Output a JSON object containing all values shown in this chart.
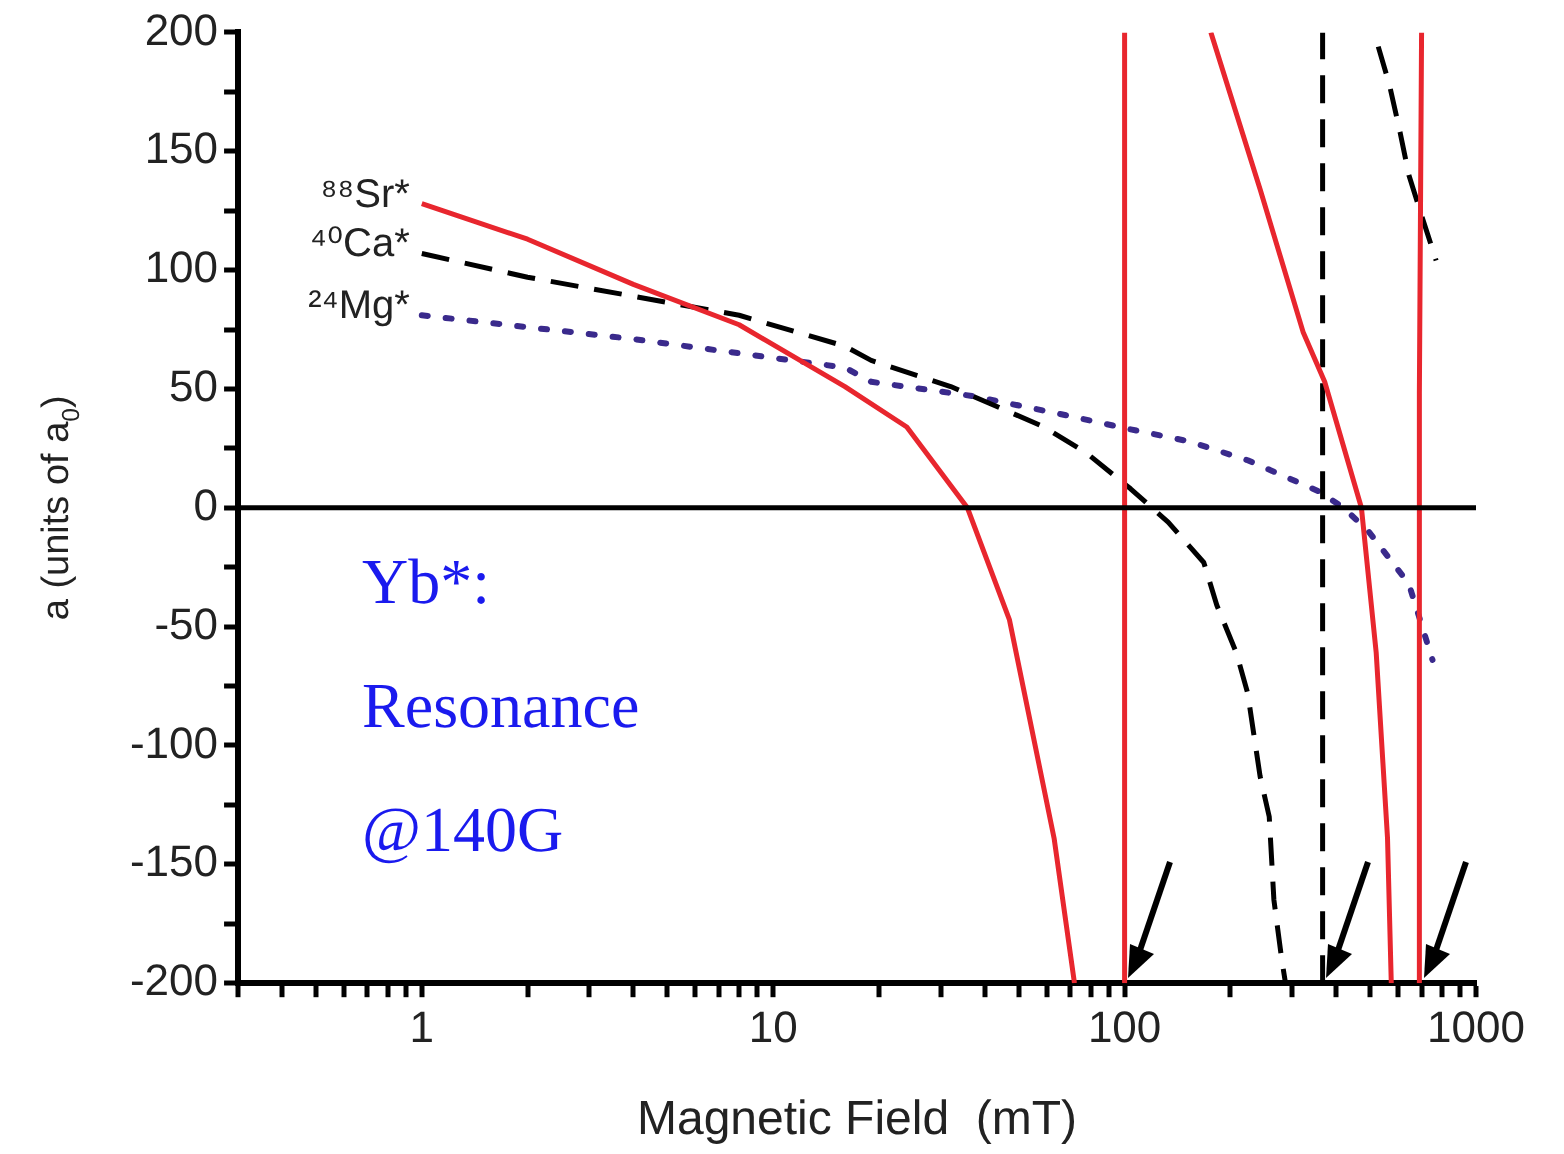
{
  "chart_data": {
    "type": "line",
    "xlabel": "Magnetic Field  (mT)",
    "ylabel": "a (units of a$_{0}$)",
    "log": "x",
    "xlim": [
      0.3,
      1000
    ],
    "xticks": [
      {
        "value": 0.3,
        "label": null
      },
      {
        "value": 0.4,
        "label": null
      },
      {
        "value": 0.5,
        "label": null
      },
      {
        "value": 0.6,
        "label": null
      },
      {
        "value": 0.7,
        "label": null
      },
      {
        "value": 0.8,
        "label": null
      },
      {
        "value": 0.9,
        "label": null
      },
      1,
      {
        "value": 2,
        "label": null
      },
      {
        "value": 3,
        "label": null
      },
      {
        "value": 4,
        "label": null
      },
      {
        "value": 5,
        "label": null
      },
      {
        "value": 6,
        "label": null
      },
      {
        "value": 7,
        "label": null
      },
      {
        "value": 8,
        "label": null
      },
      {
        "value": 9,
        "label": null
      },
      10,
      {
        "value": 20,
        "label": null
      },
      {
        "value": 30,
        "label": null
      },
      {
        "value": 40,
        "label": null
      },
      {
        "value": 50,
        "label": null
      },
      {
        "value": 60,
        "label": null
      },
      {
        "value": 70,
        "label": null
      },
      {
        "value": 80,
        "label": null
      },
      {
        "value": 90,
        "label": null
      },
      100,
      {
        "value": 200,
        "label": null
      },
      {
        "value": 300,
        "label": null
      },
      {
        "value": 400,
        "label": null
      },
      {
        "value": 500,
        "label": null
      },
      {
        "value": 600,
        "label": null
      },
      {
        "value": 700,
        "label": null
      },
      {
        "value": 800,
        "label": null
      },
      {
        "value": 900,
        "label": null
      },
      1000
    ],
    "ylim": [
      -200,
      200
    ],
    "yticks": [
      -200,
      {
        "value": -175,
        "label": null
      },
      -150,
      {
        "value": -125,
        "label": null
      },
      -100,
      {
        "value": -75,
        "label": null
      },
      -50,
      {
        "value": -25,
        "label": null
      },
      0,
      {
        "value": 25,
        "label": null
      },
      50,
      {
        "value": 75,
        "label": null
      },
      100,
      {
        "value": 125,
        "label": null
      },
      150,
      {
        "value": 175,
        "label": null
      },
      200
    ],
    "grid": false,
    "legend": false,
    "marker": "none",
    "ref_lines": [
      {
        "axis": "y",
        "value": 0,
        "color": "#000000"
      }
    ],
    "annotations": [
      "Yb*:",
      "Resonance",
      "@140G"
    ],
    "series": [
      {
        "name": "⁸⁸Sr*",
        "color": "#e8262e",
        "line_style": "solid",
        "x": [
          1,
          2,
          4,
          8,
          16,
          24,
          35.7,
          47,
          63,
          72,
          85,
          100,
          100,
          130,
          176,
          243,
          322,
          371,
          472,
          520,
          560,
          574,
          630,
          690,
          690,
          700
        ],
        "values": [
          128,
          113,
          94,
          77,
          51,
          34,
          0,
          -47,
          -139,
          -200,
          null,
          -200,
          200,
          null,
          200,
          134,
          74,
          53,
          0,
          -61,
          -139,
          -200,
          null,
          -200,
          48,
          200
        ]
      },
      {
        "name": "⁴⁰Ca*",
        "color": "#000000",
        "line_style": "dashed",
        "x": [
          1,
          2,
          4,
          8,
          16,
          19,
          32,
          59,
          78,
          104,
          133,
          168,
          183,
          208,
          224,
          243,
          258,
          266,
          280,
          287,
          320,
          366,
          366,
          440,
          527,
          567,
          608,
          644,
          700,
          770
        ],
        "values": [
          107,
          97,
          89,
          81,
          68,
          62,
          51,
          34,
          23,
          8,
          -6,
          -23,
          -41,
          -61,
          -78,
          -113,
          -130,
          -165,
          -190,
          -200,
          null,
          -200,
          200,
          null,
          194,
          178,
          158,
          140,
          123,
          104
        ]
      },
      {
        "name": "²⁴Mg*",
        "color": "#3a2a8c",
        "line_style": "dotted",
        "x": [
          1,
          2,
          4,
          8,
          16,
          19,
          37,
          63,
          104,
          152,
          224,
          356,
          420,
          495,
          644,
          752
        ],
        "values": [
          81,
          76,
          71,
          65,
          59,
          53,
          47,
          40,
          33,
          28,
          20,
          7,
          0,
          -10,
          -32,
          -64
        ]
      }
    ]
  }
}
